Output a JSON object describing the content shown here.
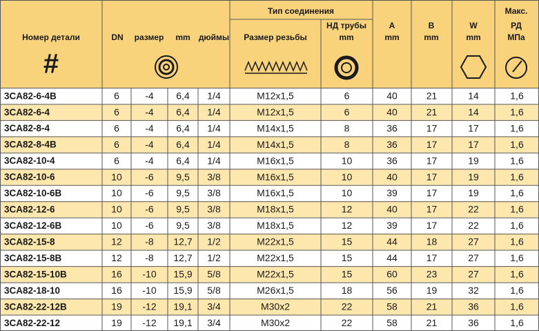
{
  "header": {
    "part": "Номер детали",
    "hash": "#",
    "dn": "DN",
    "size": "размер",
    "mm": "mm",
    "inch": "дюймы",
    "connection": "Тип соединения",
    "thread": "Размер резьбы",
    "pipe": "НД трубы",
    "pipe_unit": "mm",
    "a": "A",
    "a_unit": "mm",
    "b": "B",
    "b_unit": "mm",
    "w": "W",
    "w_unit": "mm",
    "max": "Макс.",
    "pressure": "РД",
    "pressure_unit": "МПа"
  },
  "table": {
    "rows": [
      [
        "3CA82-6-4B",
        "6",
        "-4",
        "6,4",
        "1/4",
        "M12x1,5",
        "6",
        "40",
        "21",
        "14",
        "1,6"
      ],
      [
        "3CA82-6-4",
        "6",
        "-4",
        "6,4",
        "1/4",
        "M12x1,5",
        "6",
        "40",
        "21",
        "14",
        "1,6"
      ],
      [
        "3CA82-8-4",
        "6",
        "-4",
        "6,4",
        "1/4",
        "M14x1,5",
        "8",
        "36",
        "17",
        "17",
        "1,6"
      ],
      [
        "3CA82-8-4B",
        "6",
        "-4",
        "6,4",
        "1/4",
        "M14x1,5",
        "8",
        "36",
        "17",
        "17",
        "1,6"
      ],
      [
        "3CA82-10-4",
        "6",
        "-4",
        "6,4",
        "1/4",
        "M16x1,5",
        "10",
        "36",
        "17",
        "19",
        "1,6"
      ],
      [
        "3CA82-10-6",
        "10",
        "-6",
        "9,5",
        "3/8",
        "M16x1,5",
        "10",
        "40",
        "17",
        "19",
        "1,6"
      ],
      [
        "3CA82-10-6B",
        "10",
        "-6",
        "9,5",
        "3/8",
        "M16x1,5",
        "10",
        "39",
        "17",
        "19",
        "1,6"
      ],
      [
        "3CA82-12-6",
        "10",
        "-6",
        "9,5",
        "3/8",
        "M18x1,5",
        "12",
        "40",
        "17",
        "22",
        "1,6"
      ],
      [
        "3CA82-12-6B",
        "10",
        "-6",
        "9,5",
        "3/8",
        "M18x1,5",
        "12",
        "39",
        "17",
        "22",
        "1,6"
      ],
      [
        "3CA82-15-8",
        "12",
        "-8",
        "12,7",
        "1/2",
        "M22x1,5",
        "15",
        "44",
        "18",
        "27",
        "1,6"
      ],
      [
        "3CA82-15-8B",
        "12",
        "-8",
        "12,7",
        "1/2",
        "M22x1,5",
        "15",
        "44",
        "17",
        "27",
        "1,6"
      ],
      [
        "3CA82-15-10B",
        "16",
        "-10",
        "15,9",
        "5/8",
        "M22x1,5",
        "15",
        "60",
        "23",
        "27",
        "1,6"
      ],
      [
        "3CA82-18-10",
        "16",
        "-10",
        "15,9",
        "5/8",
        "M26x1,5",
        "18",
        "56",
        "19",
        "32",
        "1,6"
      ],
      [
        "3CA82-22-12B",
        "19",
        "-12",
        "19,1",
        "3/4",
        "M30x2",
        "22",
        "58",
        "21",
        "36",
        "1,6"
      ],
      [
        "3CA82-22-12",
        "19",
        "-12",
        "19,1",
        "3/4",
        "M30x2",
        "22",
        "58",
        "21",
        "36",
        "1,6"
      ]
    ]
  }
}
